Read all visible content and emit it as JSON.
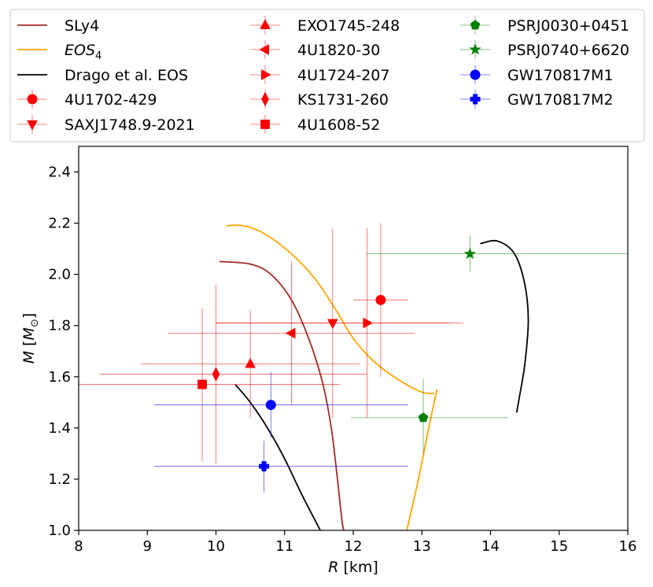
{
  "chart_data": {
    "type": "scatter",
    "title": "",
    "xlabel": {
      "var": "R",
      "unit": " [km]"
    },
    "ylabel": {
      "var": "M",
      "unit_open": " [",
      "unit_var": "M",
      "unit_sub": "⊙",
      "unit_close": "]"
    },
    "xlim": [
      8,
      16
    ],
    "ylim": [
      1.0,
      2.5
    ],
    "xticks": [
      8,
      9,
      10,
      11,
      12,
      13,
      14,
      15,
      16
    ],
    "yticks": [
      1.0,
      1.2,
      1.4,
      1.6,
      1.8,
      2.0,
      2.2,
      2.4
    ],
    "grid": false,
    "legend_position": "top",
    "curves": [
      {
        "name": "SLy4",
        "color": "#a52a2a",
        "points": [
          [
            10.05,
            2.05
          ],
          [
            10.5,
            2.04
          ],
          [
            10.8,
            2.0
          ],
          [
            11.1,
            1.9
          ],
          [
            11.35,
            1.75
          ],
          [
            11.55,
            1.58
          ],
          [
            11.68,
            1.4
          ],
          [
            11.77,
            1.2
          ],
          [
            11.83,
            1.05
          ],
          [
            11.86,
            1.0
          ]
        ]
      },
      {
        "name": "EOS",
        "name_sub": "4",
        "color": "#ffa500",
        "points": [
          [
            10.15,
            2.19
          ],
          [
            10.4,
            2.19
          ],
          [
            10.7,
            2.16
          ],
          [
            11.1,
            2.08
          ],
          [
            11.45,
            1.98
          ],
          [
            11.75,
            1.86
          ],
          [
            12.0,
            1.75
          ],
          [
            12.3,
            1.66
          ],
          [
            12.65,
            1.59
          ],
          [
            13.0,
            1.54
          ],
          [
            13.18,
            1.535
          ]
        ],
        "branch2": [
          [
            12.78,
            1.0
          ],
          [
            12.95,
            1.2
          ],
          [
            13.1,
            1.4
          ],
          [
            13.22,
            1.55
          ]
        ]
      },
      {
        "name": "Drago et al. EOS",
        "color": "#000000",
        "points": [
          [
            10.28,
            1.57
          ],
          [
            10.5,
            1.5
          ],
          [
            10.75,
            1.4
          ],
          [
            11.0,
            1.28
          ],
          [
            11.25,
            1.14
          ],
          [
            11.52,
            1.0
          ]
        ],
        "branch2": [
          [
            13.85,
            2.12
          ],
          [
            14.1,
            2.13
          ],
          [
            14.35,
            2.08
          ],
          [
            14.5,
            1.96
          ],
          [
            14.55,
            1.82
          ],
          [
            14.5,
            1.65
          ],
          [
            14.42,
            1.52
          ],
          [
            14.38,
            1.46
          ]
        ]
      }
    ],
    "points": [
      {
        "name": "4U1702-429",
        "color": "#ff0000",
        "marker": "circle",
        "x": 12.4,
        "y": 1.9,
        "xerr": [
          0.4,
          0.4
        ],
        "yerr": [
          0.3,
          0.3
        ]
      },
      {
        "name": "SAXJ1748.9-2021",
        "color": "#ff0000",
        "marker": "triangle-down",
        "x": 11.7,
        "y": 1.81,
        "xerr": [
          1.7,
          1.7
        ],
        "yerr": [
          0.37,
          0.37
        ]
      },
      {
        "name": "EXO1745-248",
        "color": "#ff0000",
        "marker": "triangle-up",
        "x": 10.5,
        "y": 1.65,
        "xerr": [
          1.6,
          1.6
        ],
        "yerr": [
          0.21,
          0.21
        ]
      },
      {
        "name": "4U1820-30",
        "color": "#ff0000",
        "marker": "triangle-left",
        "x": 11.1,
        "y": 1.77,
        "xerr": [
          1.8,
          1.8
        ],
        "yerr": [
          0.28,
          0.28
        ]
      },
      {
        "name": "4U1724-207",
        "color": "#ff0000",
        "marker": "triangle-right",
        "x": 12.2,
        "y": 1.81,
        "xerr": [
          2.2,
          1.4
        ],
        "yerr": [
          0.37,
          0.37
        ]
      },
      {
        "name": "KS1731-260",
        "color": "#ff0000",
        "marker": "diamond",
        "x": 10.0,
        "y": 1.61,
        "xerr": [
          1.7,
          2.2
        ],
        "yerr": [
          0.35,
          0.35
        ]
      },
      {
        "name": "4U1608-52",
        "color": "#ff0000",
        "marker": "square",
        "x": 9.8,
        "y": 1.57,
        "xerr": [
          1.8,
          2.0
        ],
        "yerr": [
          0.3,
          0.3
        ]
      },
      {
        "name": "PSRJ0030+0451",
        "color": "#008000",
        "marker": "pentagon",
        "x": 13.02,
        "y": 1.44,
        "xerr": [
          1.06,
          1.24
        ],
        "yerr": [
          0.14,
          0.15
        ]
      },
      {
        "name": "PSRJ0740+6620",
        "color": "#008000",
        "marker": "star",
        "x": 13.7,
        "y": 2.08,
        "xerr": [
          1.5,
          2.6
        ],
        "yerr": [
          0.07,
          0.07
        ]
      },
      {
        "name": "GW170817M1",
        "color": "#0000ff",
        "marker": "circle",
        "x": 10.8,
        "y": 1.49,
        "xerr": [
          1.7,
          2.0
        ],
        "yerr": [
          0.13,
          0.13
        ]
      },
      {
        "name": "GW170817M2",
        "color": "#0000ff",
        "marker": "plus",
        "x": 10.7,
        "y": 1.25,
        "xerr": [
          1.6,
          2.1
        ],
        "yerr": [
          0.1,
          0.1
        ]
      }
    ]
  }
}
